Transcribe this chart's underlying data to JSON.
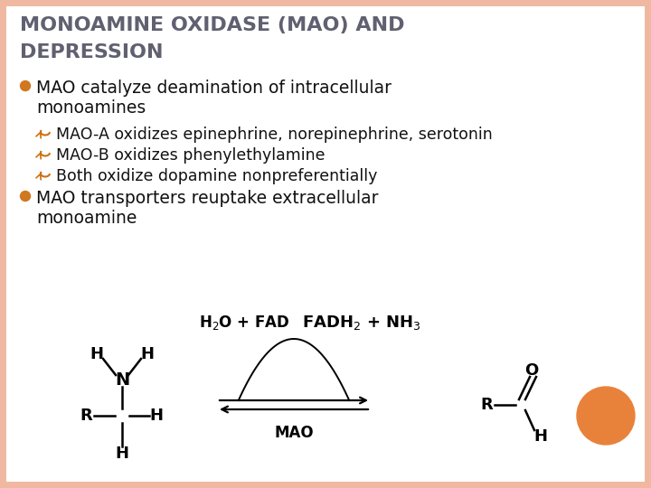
{
  "title_line1": "MONOAMINE OXIDASE (MAO) AND",
  "title_line2": "DEPRESSION",
  "title_color": "#606070",
  "title_fontsize": 16,
  "bg_color": "#ffffff",
  "border_color": "#f0b8a0",
  "bullet_color": "#d07820",
  "sub_bullet_color": "#cc7010",
  "bullet1_line1": "MAO catalyze deamination of intracellular",
  "bullet1_line2": "monoamines",
  "sub1": "MAO-A oxidizes epinephrine, norepinephrine, serotonin",
  "sub2": "MAO-B oxidizes phenylethylamine",
  "sub3": "Both oxidize dopamine nonpreferentially",
  "bullet2_line1": "MAO transporters reuptake extracellular",
  "bullet2_line2": "monoamine",
  "text_color": "#111111",
  "text_fontsize": 13.5,
  "sub_fontsize": 12.5,
  "orange_circle_color": "#e8823a"
}
